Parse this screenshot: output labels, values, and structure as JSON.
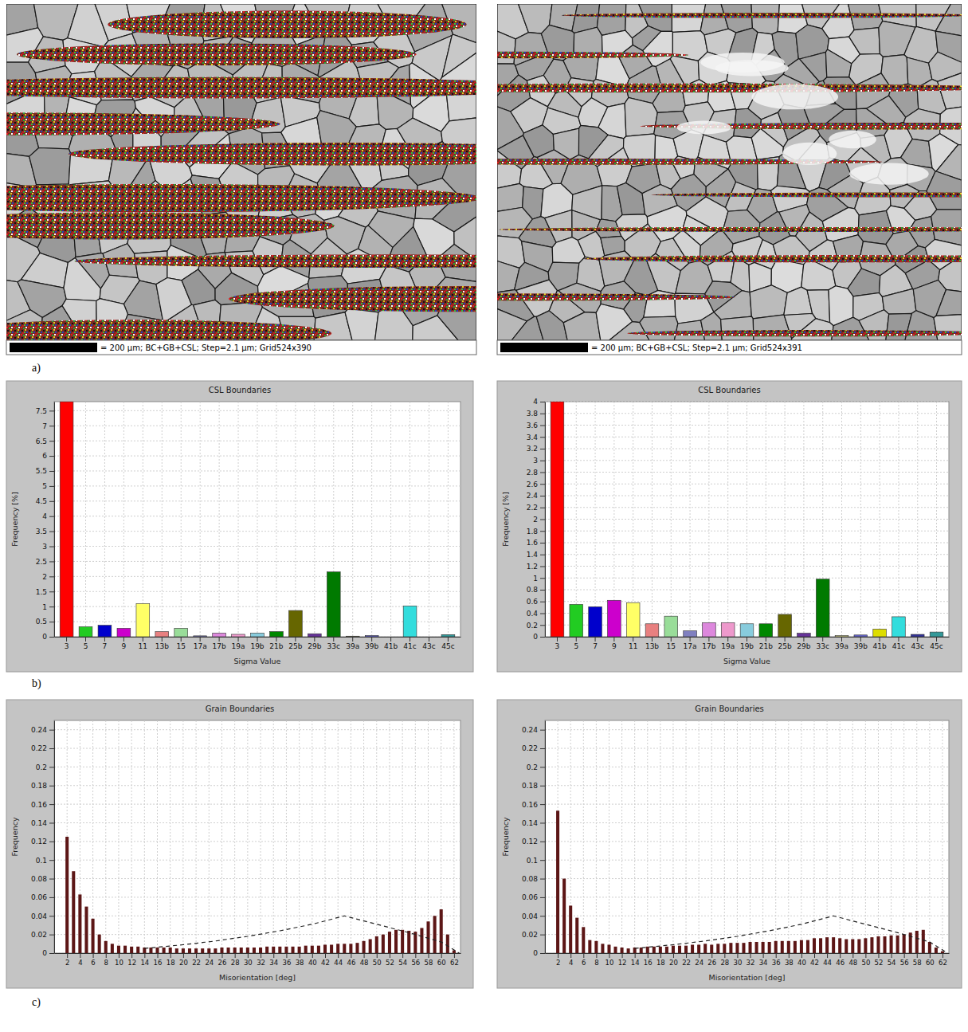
{
  "figure": {
    "panel_labels": [
      "a)",
      "b)",
      "c)"
    ]
  },
  "maps": [
    {
      "caption": "= 200 µm; BC+GB+CSL; Step=2.1 µm; Grid524x390"
    },
    {
      "caption": "= 200 µm; BC+GB+CSL; Step=2.1 µm; Grid524x391"
    }
  ],
  "chart_data": [
    {
      "type": "bar",
      "title": "CSL Boundaries",
      "x_label": "Sigma Value",
      "y_label": "Frequency [%]",
      "categories": [
        "3",
        "5",
        "7",
        "9",
        "11",
        "13b",
        "15",
        "17a",
        "17b",
        "19a",
        "19b",
        "21b",
        "25b",
        "29b",
        "33c",
        "39a",
        "39b",
        "41b",
        "41c",
        "43c",
        "45c"
      ],
      "values": [
        7.8,
        0.33,
        0.38,
        0.28,
        1.1,
        0.17,
        0.28,
        0.03,
        0.12,
        0.08,
        0.12,
        0.17,
        0.87,
        0.1,
        2.15,
        0.02,
        0.04,
        0,
        1.02,
        0,
        0.07
      ],
      "colors": [
        "#ff0000",
        "#22cc22",
        "#0000cc",
        "#cc00cc",
        "#ffff66",
        "#e88080",
        "#99dd99",
        "#8080c0",
        "#dd88dd",
        "#ee99cc",
        "#88ccdd",
        "#008800",
        "#666600",
        "#663399",
        "#007a00",
        "#cccc88",
        "#6666cc",
        "#dddd00",
        "#33dddd",
        "#333399",
        "#339999"
      ],
      "ylim": [
        0,
        7.8
      ],
      "yticks": [
        0,
        0.5,
        1,
        1.5,
        2,
        2.5,
        3,
        3.5,
        4,
        4.5,
        5,
        5.5,
        6,
        6.5,
        7,
        7.5
      ],
      "grid": true
    },
    {
      "type": "bar",
      "title": "CSL Boundaries",
      "x_label": "Sigma Value",
      "y_label": "Frequency [%]",
      "categories": [
        "3",
        "5",
        "7",
        "9",
        "11",
        "13b",
        "15",
        "17a",
        "17b",
        "19a",
        "19b",
        "21b",
        "25b",
        "29b",
        "33c",
        "39a",
        "39b",
        "41b",
        "41c",
        "43c",
        "45c"
      ],
      "values": [
        4,
        0.55,
        0.51,
        0.62,
        0.58,
        0.22,
        0.35,
        0.1,
        0.24,
        0.24,
        0.22,
        0.22,
        0.38,
        0.06,
        0.98,
        0.02,
        0.03,
        0.13,
        0.34,
        0.04,
        0.08
      ],
      "colors": [
        "#ff0000",
        "#22cc22",
        "#0000cc",
        "#cc00cc",
        "#ffff66",
        "#e88080",
        "#99dd99",
        "#8080c0",
        "#dd88dd",
        "#ee99cc",
        "#88ccdd",
        "#008800",
        "#666600",
        "#663399",
        "#007a00",
        "#cccc88",
        "#6666cc",
        "#dddd00",
        "#33dddd",
        "#333399",
        "#339999"
      ],
      "ylim": [
        0,
        4
      ],
      "yticks": [
        0,
        0.2,
        0.4,
        0.6,
        0.8,
        1,
        1.2,
        1.4,
        1.6,
        1.8,
        2,
        2.2,
        2.4,
        2.6,
        2.8,
        3,
        3.2,
        3.4,
        3.6,
        3.8,
        4
      ],
      "grid": true
    },
    {
      "type": "bar",
      "title": "Grain Boundaries",
      "x_label": "Misorientation [deg]",
      "y_label": "Frequency",
      "x": [
        2,
        3,
        4,
        5,
        6,
        7,
        8,
        9,
        10,
        11,
        12,
        13,
        14,
        15,
        16,
        17,
        18,
        19,
        20,
        21,
        22,
        23,
        24,
        25,
        26,
        27,
        28,
        29,
        30,
        31,
        32,
        33,
        34,
        35,
        36,
        37,
        38,
        39,
        40,
        41,
        42,
        43,
        44,
        45,
        46,
        47,
        48,
        49,
        50,
        51,
        52,
        53,
        54,
        55,
        56,
        57,
        58,
        59,
        60,
        61,
        62
      ],
      "series": [
        {
          "type": "bar",
          "color": "#5c1616",
          "values": [
            0.125,
            0.088,
            0.063,
            0.05,
            0.037,
            0.02,
            0.013,
            0.01,
            0.008,
            0.008,
            0.007,
            0.007,
            0.006,
            0.006,
            0.006,
            0.006,
            0.006,
            0.005,
            0.005,
            0.005,
            0.005,
            0.005,
            0.005,
            0.005,
            0.006,
            0.006,
            0.006,
            0.006,
            0.006,
            0.006,
            0.006,
            0.007,
            0.007,
            0.007,
            0.007,
            0.007,
            0.007,
            0.008,
            0.008,
            0.008,
            0.009,
            0.009,
            0.01,
            0.01,
            0.01,
            0.011,
            0.013,
            0.015,
            0.018,
            0.02,
            0.023,
            0.025,
            0.025,
            0.024,
            0.023,
            0.027,
            0.034,
            0.04,
            0.047,
            0.02,
            0.003
          ]
        },
        {
          "type": "line",
          "color": "#222222",
          "line_style": "dashed",
          "x": [
            14,
            20,
            25,
            30,
            35,
            40,
            45,
            50,
            55,
            60,
            62.8
          ],
          "values": [
            0.005,
            0.009,
            0.013,
            0.018,
            0.024,
            0.031,
            0.04,
            0.031,
            0.022,
            0.012,
            0
          ]
        }
      ],
      "xlim": [
        0,
        63
      ],
      "xticks": [
        2,
        4,
        6,
        8,
        10,
        12,
        14,
        16,
        18,
        20,
        22,
        24,
        26,
        28,
        30,
        32,
        34,
        36,
        38,
        40,
        42,
        44,
        46,
        48,
        50,
        52,
        54,
        56,
        58,
        60,
        62
      ],
      "ylim": [
        0,
        0.25
      ],
      "yticks": [
        0,
        0.02,
        0.04,
        0.06,
        0.08,
        0.1,
        0.12,
        0.14,
        0.16,
        0.18,
        0.2,
        0.22,
        0.24
      ],
      "grid": true
    },
    {
      "type": "bar",
      "title": "Grain Boundaries",
      "x_label": "Misorientation [deg]",
      "y_label": "Frequency",
      "x": [
        2,
        3,
        4,
        5,
        6,
        7,
        8,
        9,
        10,
        11,
        12,
        13,
        14,
        15,
        16,
        17,
        18,
        19,
        20,
        21,
        22,
        23,
        24,
        25,
        26,
        27,
        28,
        29,
        30,
        31,
        32,
        33,
        34,
        35,
        36,
        37,
        38,
        39,
        40,
        41,
        42,
        43,
        44,
        45,
        46,
        47,
        48,
        49,
        50,
        51,
        52,
        53,
        54,
        55,
        56,
        57,
        58,
        59,
        60,
        61,
        62
      ],
      "series": [
        {
          "type": "bar",
          "color": "#5c1616",
          "values": [
            0.153,
            0.08,
            0.051,
            0.038,
            0.028,
            0.014,
            0.013,
            0.01,
            0.009,
            0.007,
            0.006,
            0.005,
            0.006,
            0.006,
            0.007,
            0.007,
            0.007,
            0.007,
            0.008,
            0.008,
            0.008,
            0.009,
            0.009,
            0.01,
            0.009,
            0.01,
            0.01,
            0.011,
            0.011,
            0.011,
            0.012,
            0.012,
            0.012,
            0.012,
            0.013,
            0.013,
            0.013,
            0.013,
            0.014,
            0.014,
            0.016,
            0.016,
            0.017,
            0.017,
            0.016,
            0.015,
            0.015,
            0.015,
            0.016,
            0.017,
            0.018,
            0.018,
            0.019,
            0.019,
            0.02,
            0.022,
            0.024,
            0.025,
            0.012,
            0.006,
            0.002
          ]
        },
        {
          "type": "line",
          "color": "#222222",
          "line_style": "dashed",
          "x": [
            14,
            20,
            25,
            30,
            35,
            40,
            45,
            50,
            55,
            60,
            62.8
          ],
          "values": [
            0.005,
            0.009,
            0.013,
            0.018,
            0.024,
            0.031,
            0.04,
            0.031,
            0.022,
            0.012,
            0
          ]
        }
      ],
      "xlim": [
        0,
        63
      ],
      "xticks": [
        2,
        4,
        6,
        8,
        10,
        12,
        14,
        16,
        18,
        20,
        22,
        24,
        26,
        28,
        30,
        32,
        34,
        36,
        38,
        40,
        42,
        44,
        46,
        48,
        50,
        52,
        54,
        56,
        58,
        60,
        62
      ],
      "ylim": [
        0,
        0.25
      ],
      "yticks": [
        0,
        0.02,
        0.04,
        0.06,
        0.08,
        0.1,
        0.12,
        0.14,
        0.16,
        0.18,
        0.2,
        0.22,
        0.24
      ],
      "grid": true
    }
  ]
}
